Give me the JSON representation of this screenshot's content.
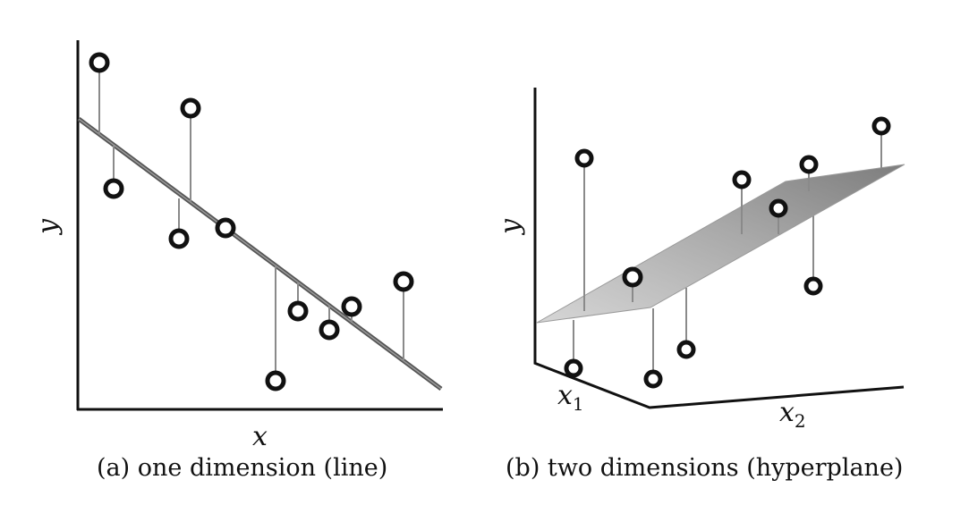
{
  "panel_a": {
    "x_axis_label": "x",
    "y_axis_label": "y",
    "caption": "(a) one dimension (line)"
  },
  "panel_b": {
    "x1_axis_label": "x",
    "x1_axis_sub": "1",
    "x2_axis_label": "x",
    "x2_axis_sub": "2",
    "y_axis_label": "y",
    "caption": "(b) two dimensions (hyperplane)"
  },
  "colors": {
    "axis": "#111111",
    "fit_line": "#555555",
    "plane": "#a8a8a8",
    "residual": "#8a8a8a"
  }
}
